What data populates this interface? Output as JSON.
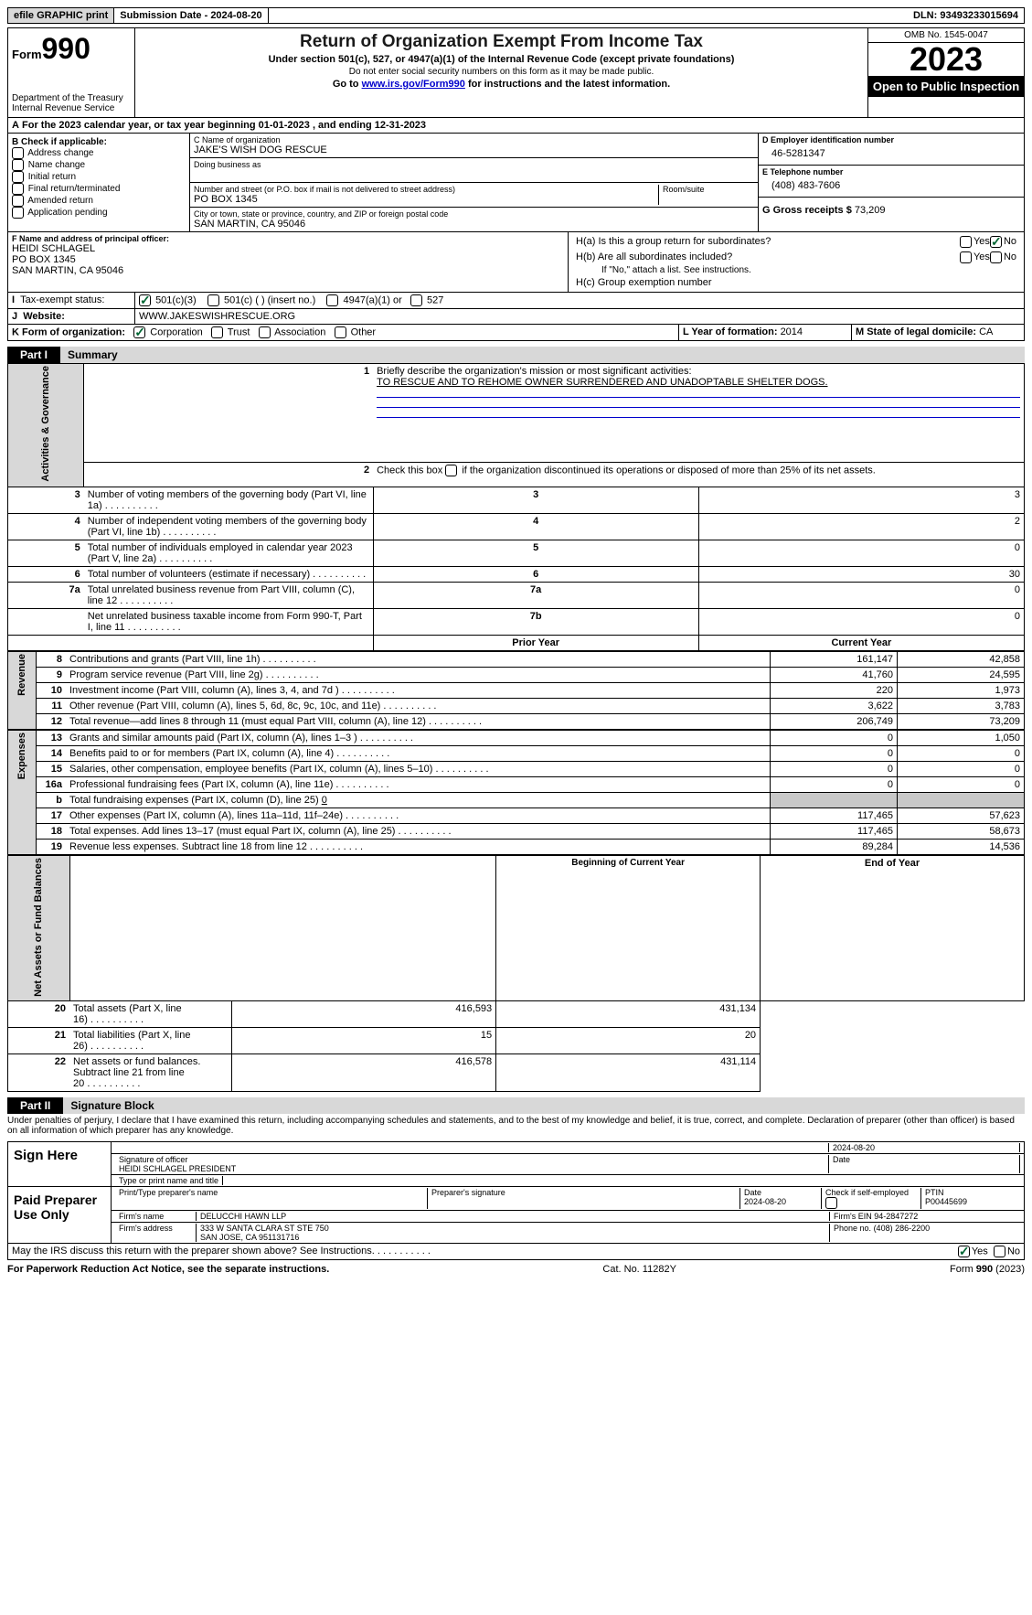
{
  "bar": {
    "efile": "efile GRAPHIC print",
    "sub": "Submission Date - 2024-08-20",
    "dln": "DLN: 93493233015694"
  },
  "hdr": {
    "form": "Form",
    "n": "990",
    "title": "Return of Organization Exempt From Income Tax",
    "sub": "Under section 501(c), 527, or 4947(a)(1) of the Internal Revenue Code (except private foundations)",
    "warn": "Do not enter social security numbers on this form as it may be made public.",
    "goto": "Go to ",
    "url": "www.irs.gov/Form990",
    "goto2": " for instructions and the latest information.",
    "dept": "Department of the Treasury",
    "irs": "Internal Revenue Service",
    "omb": "OMB No. 1545-0047",
    "year": "2023",
    "otp": "Open to Public Inspection"
  },
  "A": {
    "txt": "For the 2023 calendar year, or tax year beginning 01-01-2023   , and ending 12-31-2023"
  },
  "B": {
    "hdr": "B Check if applicable:",
    "items": [
      "Address change",
      "Name change",
      "Initial return",
      "Final return/terminated",
      "Amended return",
      "Application pending"
    ]
  },
  "C": {
    "nameHdr": "C Name of organization",
    "name": "JAKE'S WISH DOG RESCUE",
    "dba": "Doing business as",
    "addrHdr": "Number and street (or P.O. box if mail is not delivered to street address)",
    "room": "Room/suite",
    "addr": "PO BOX 1345",
    "cityHdr": "City or town, state or province, country, and ZIP or foreign postal code",
    "city": "SAN MARTIN, CA  95046"
  },
  "D": {
    "hdr": "D Employer identification number",
    "ein": "46-5281347"
  },
  "E": {
    "hdr": "E Telephone number",
    "tel": "(408) 483-7606"
  },
  "G": {
    "hdr": "G Gross receipts $ ",
    "val": "73,209"
  },
  "F": {
    "hdr": "F  Name and address of principal officer:",
    "name": "HEIDI SCHLAGEL",
    "l1": "PO BOX 1345",
    "l2": "SAN MARTIN, CA  95046"
  },
  "H": {
    "a": "H(a)  Is this a group return for subordinates?",
    "b": "H(b)  Are all subordinates included?",
    "bnote": "If \"No,\" attach a list. See instructions.",
    "c": "H(c)  Group exemption number",
    "yes": "Yes",
    "no": "No"
  },
  "I": {
    "hdr": "Tax-exempt status:",
    "o1": "501(c)(3)",
    "o2": "501(c) (  ) (insert no.)",
    "o3": "4947(a)(1) or",
    "o4": "527"
  },
  "J": {
    "hdr": "Website:",
    "val": "WWW.JAKESWISHRESCUE.ORG"
  },
  "K": {
    "hdr": "K Form of organization:",
    "o1": "Corporation",
    "o2": "Trust",
    "o3": "Association",
    "o4": "Other"
  },
  "L": {
    "hdr": "L Year of formation: ",
    "val": "2014"
  },
  "M": {
    "hdr": "M State of legal domicile: ",
    "val": "CA"
  },
  "P1": {
    "lbl": "Part I",
    "t": "Summary"
  },
  "s1": {
    "n": "1",
    "t": "Briefly describe the organization's mission or most significant activities:",
    "m": "TO RESCUE AND TO REHOME OWNER SURRENDERED AND UNADOPTABLE SHELTER DOGS."
  },
  "s2": {
    "n": "2",
    "t": "Check this box ",
    "t2": " if the organization discontinued its operations or disposed of more than 25% of its net assets."
  },
  "gov": [
    {
      "n": "3",
      "t": "Number of voting members of the governing body (Part VI, line 1a)",
      "b": "3",
      "v": "3"
    },
    {
      "n": "4",
      "t": "Number of independent voting members of the governing body (Part VI, line 1b)",
      "b": "4",
      "v": "2"
    },
    {
      "n": "5",
      "t": "Total number of individuals employed in calendar year 2023 (Part V, line 2a)",
      "b": "5",
      "v": "0"
    },
    {
      "n": "6",
      "t": "Total number of volunteers (estimate if necessary)",
      "b": "6",
      "v": "30"
    },
    {
      "n": "7a",
      "t": "Total unrelated business revenue from Part VIII, column (C), line 12",
      "b": "7a",
      "v": "0"
    },
    {
      "n": "",
      "t": "Net unrelated business taxable income from Form 990-T, Part I, line 11",
      "b": "7b",
      "v": "0"
    }
  ],
  "colh": {
    "py": "Prior Year",
    "cy": "Current Year",
    "bcy": "Beginning of Current Year",
    "eoy": "End of Year"
  },
  "rev": [
    {
      "n": "8",
      "t": "Contributions and grants (Part VIII, line 1h)",
      "p": "161,147",
      "c": "42,858"
    },
    {
      "n": "9",
      "t": "Program service revenue (Part VIII, line 2g)",
      "p": "41,760",
      "c": "24,595"
    },
    {
      "n": "10",
      "t": "Investment income (Part VIII, column (A), lines 3, 4, and 7d )",
      "p": "220",
      "c": "1,973"
    },
    {
      "n": "11",
      "t": "Other revenue (Part VIII, column (A), lines 5, 6d, 8c, 9c, 10c, and 11e)",
      "p": "3,622",
      "c": "3,783"
    },
    {
      "n": "12",
      "t": "Total revenue—add lines 8 through 11 (must equal Part VIII, column (A), line 12)",
      "p": "206,749",
      "c": "73,209"
    }
  ],
  "exp": [
    {
      "n": "13",
      "t": "Grants and similar amounts paid (Part IX, column (A), lines 1–3 )",
      "p": "0",
      "c": "1,050"
    },
    {
      "n": "14",
      "t": "Benefits paid to or for members (Part IX, column (A), line 4)",
      "p": "0",
      "c": "0"
    },
    {
      "n": "15",
      "t": "Salaries, other compensation, employee benefits (Part IX, column (A), lines 5–10)",
      "p": "0",
      "c": "0"
    },
    {
      "n": "16a",
      "t": "Professional fundraising fees (Part IX, column (A), line 11e)",
      "p": "0",
      "c": "0"
    },
    {
      "n": "b",
      "t": "Total fundraising expenses (Part IX, column (D), line 25) ",
      "tv": "0",
      "gray": true
    },
    {
      "n": "17",
      "t": "Other expenses (Part IX, column (A), lines 11a–11d, 11f–24e)",
      "p": "117,465",
      "c": "57,623"
    },
    {
      "n": "18",
      "t": "Total expenses. Add lines 13–17 (must equal Part IX, column (A), line 25)",
      "p": "117,465",
      "c": "58,673"
    },
    {
      "n": "19",
      "t": "Revenue less expenses. Subtract line 18 from line 12",
      "p": "89,284",
      "c": "14,536"
    }
  ],
  "net": [
    {
      "n": "20",
      "t": "Total assets (Part X, line 16)",
      "p": "416,593",
      "c": "431,134"
    },
    {
      "n": "21",
      "t": "Total liabilities (Part X, line 26)",
      "p": "15",
      "c": "20"
    },
    {
      "n": "22",
      "t": "Net assets or fund balances. Subtract line 21 from line 20",
      "p": "416,578",
      "c": "431,114"
    }
  ],
  "vtabs": {
    "gov": "Activities & Governance",
    "rev": "Revenue",
    "exp": "Expenses",
    "net": "Net Assets or Fund Balances"
  },
  "P2": {
    "lbl": "Part II",
    "t": "Signature Block"
  },
  "pen": "Under penalties of perjury, I declare that I have examined this return, including accompanying schedules and statements, and to the best of my knowledge and belief, it is true, correct, and complete. Declaration of preparer (other than officer) is based on all information of which preparer has any knowledge.",
  "sign": {
    "here": "Sign Here",
    "sigoff": "Signature of officer",
    "date": "Date",
    "dt": "2024-08-20",
    "name": "HEIDI SCHLAGEL PRESIDENT",
    "type": "Type or print name and title"
  },
  "prep": {
    "lbl": "Paid Preparer Use Only",
    "pn": "Print/Type preparer's name",
    "ps": "Preparer's signature",
    "dt": "Date",
    "dtv": "2024-08-20",
    "chk": "Check         if self-employed",
    "ptin": "PTIN",
    "ptinv": "P00445699",
    "fn": "Firm's name",
    "fnv": "DELUCCHI HAWN LLP",
    "fein": "Firm's EIN",
    "feinv": "94-2847272",
    "fa": "Firm's address",
    "fav1": "333 W SANTA CLARA ST STE 750",
    "fav2": "SAN JOSE, CA  951131716",
    "ph": "Phone no.",
    "phv": "(408) 286-2200"
  },
  "may": {
    "t": "May the IRS discuss this return with the preparer shown above? See Instructions.",
    "yes": "Yes",
    "no": "No"
  },
  "ftr": {
    "l": "For Paperwork Reduction Act Notice, see the separate instructions.",
    "c": "Cat. No. 11282Y",
    "r": "Form 990 (2023)"
  }
}
